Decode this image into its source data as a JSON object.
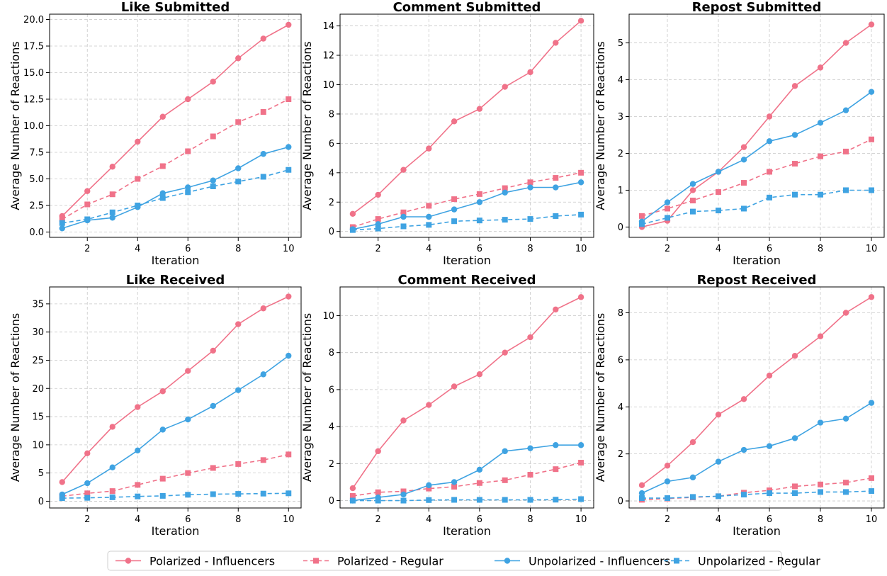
{
  "chart_data": [
    {
      "type": "line",
      "title": "Like Submitted",
      "xlabel": "Iteration",
      "ylabel": "Average Number of Reactions",
      "x": [
        1,
        2,
        3,
        4,
        5,
        6,
        7,
        8,
        9,
        10
      ],
      "xlim": [
        0.5,
        10.5
      ],
      "ylim": [
        -0.5,
        20.5
      ],
      "xticks": [
        "2",
        "4",
        "6",
        "8",
        "10"
      ],
      "yticks": [
        "0.0",
        "2.5",
        "5.0",
        "7.5",
        "10.0",
        "12.5",
        "15.0",
        "17.5",
        "20.0"
      ],
      "grid": true,
      "series": [
        {
          "name": "Polarized - Influencers",
          "values": [
            1.5,
            3.85,
            6.15,
            8.5,
            10.85,
            12.5,
            14.15,
            16.35,
            18.2,
            19.5
          ]
        },
        {
          "name": "Polarized - Regular",
          "values": [
            1.2,
            2.6,
            3.55,
            5.0,
            6.2,
            7.6,
            9.0,
            10.35,
            11.3,
            12.5
          ]
        },
        {
          "name": "Unpolarized - Influencers",
          "values": [
            0.35,
            1.1,
            1.35,
            2.35,
            3.65,
            4.2,
            4.85,
            6.0,
            7.35,
            8.0
          ]
        },
        {
          "name": "Unpolarized - Regular",
          "values": [
            0.85,
            1.2,
            1.85,
            2.5,
            3.2,
            3.75,
            4.3,
            4.75,
            5.2,
            5.85
          ]
        }
      ]
    },
    {
      "type": "line",
      "title": "Comment Submitted",
      "xlabel": "Iteration",
      "ylabel": "Average Number of Reactions",
      "x": [
        1,
        2,
        3,
        4,
        5,
        6,
        7,
        8,
        9,
        10
      ],
      "xlim": [
        0.5,
        10.5
      ],
      "ylim": [
        -0.4,
        14.8
      ],
      "xticks": [
        "2",
        "4",
        "6",
        "8",
        "10"
      ],
      "yticks": [
        "0",
        "2",
        "4",
        "6",
        "8",
        "10",
        "12",
        "14"
      ],
      "grid": true,
      "series": [
        {
          "name": "Polarized - Influencers",
          "values": [
            1.2,
            2.5,
            4.2,
            5.65,
            7.5,
            8.35,
            9.85,
            10.85,
            12.85,
            14.35
          ]
        },
        {
          "name": "Polarized - Regular",
          "values": [
            0.3,
            0.85,
            1.3,
            1.75,
            2.2,
            2.55,
            2.95,
            3.35,
            3.65,
            4.0
          ]
        },
        {
          "name": "Unpolarized - Influencers",
          "values": [
            0.15,
            0.5,
            1.0,
            1.0,
            1.5,
            2.0,
            2.65,
            3.0,
            3.0,
            3.35
          ]
        },
        {
          "name": "Unpolarized - Regular",
          "values": [
            0.1,
            0.2,
            0.35,
            0.45,
            0.7,
            0.75,
            0.8,
            0.85,
            1.05,
            1.15
          ]
        }
      ]
    },
    {
      "type": "line",
      "title": "Repost Submitted",
      "xlabel": "Iteration",
      "ylabel": "Average Number of Reactions",
      "x": [
        1,
        2,
        3,
        4,
        5,
        6,
        7,
        8,
        9,
        10
      ],
      "xlim": [
        0.5,
        10.5
      ],
      "ylim": [
        -0.28,
        5.78
      ],
      "xticks": [
        "2",
        "4",
        "6",
        "8",
        "10"
      ],
      "yticks": [
        "0",
        "1",
        "2",
        "3",
        "4",
        "5"
      ],
      "grid": true,
      "series": [
        {
          "name": "Polarized - Influencers",
          "values": [
            0.0,
            0.17,
            1.0,
            1.5,
            2.17,
            3.0,
            3.83,
            4.33,
            5.0,
            5.5
          ]
        },
        {
          "name": "Polarized - Regular",
          "values": [
            0.3,
            0.5,
            0.72,
            0.95,
            1.2,
            1.5,
            1.72,
            1.92,
            2.05,
            2.38
          ]
        },
        {
          "name": "Unpolarized - Influencers",
          "values": [
            0.15,
            0.67,
            1.17,
            1.5,
            1.83,
            2.33,
            2.5,
            2.83,
            3.17,
            3.67
          ]
        },
        {
          "name": "Unpolarized - Regular",
          "values": [
            0.08,
            0.25,
            0.42,
            0.45,
            0.5,
            0.8,
            0.88,
            0.88,
            1.0,
            1.0
          ]
        }
      ]
    },
    {
      "type": "line",
      "title": "Like Received",
      "xlabel": "Iteration",
      "ylabel": "Average Number of Reactions",
      "x": [
        1,
        2,
        3,
        4,
        5,
        6,
        7,
        8,
        9,
        10
      ],
      "xlim": [
        0.5,
        10.5
      ],
      "ylim": [
        -1.2,
        38.0
      ],
      "xticks": [
        "2",
        "4",
        "6",
        "8",
        "10"
      ],
      "yticks": [
        "0",
        "5",
        "10",
        "15",
        "20",
        "25",
        "30",
        "35"
      ],
      "grid": true,
      "series": [
        {
          "name": "Polarized - Influencers",
          "values": [
            3.4,
            8.5,
            13.2,
            16.7,
            19.5,
            23.1,
            26.7,
            31.4,
            34.2,
            36.3
          ]
        },
        {
          "name": "Polarized - Regular",
          "values": [
            0.9,
            1.4,
            1.8,
            2.9,
            4.0,
            5.0,
            5.9,
            6.6,
            7.3,
            8.3
          ]
        },
        {
          "name": "Unpolarized - Influencers",
          "values": [
            1.2,
            3.2,
            6.0,
            9.0,
            12.7,
            14.5,
            16.9,
            19.7,
            22.5,
            25.8
          ]
        },
        {
          "name": "Unpolarized - Regular",
          "values": [
            0.55,
            0.6,
            0.7,
            0.85,
            0.95,
            1.15,
            1.25,
            1.3,
            1.35,
            1.4
          ]
        }
      ]
    },
    {
      "type": "line",
      "title": "Comment Received",
      "xlabel": "Iteration",
      "ylabel": "Average Number of Reactions",
      "x": [
        1,
        2,
        3,
        4,
        5,
        6,
        7,
        8,
        9,
        10
      ],
      "xlim": [
        0.5,
        10.5
      ],
      "ylim": [
        -0.4,
        11.55
      ],
      "xticks": [
        "2",
        "4",
        "6",
        "8",
        "10"
      ],
      "yticks": [
        "0",
        "2",
        "4",
        "6",
        "8",
        "10"
      ],
      "grid": true,
      "series": [
        {
          "name": "Polarized - Influencers",
          "values": [
            0.67,
            2.67,
            4.33,
            5.17,
            6.17,
            6.83,
            8.0,
            8.83,
            10.33,
            11.0
          ]
        },
        {
          "name": "Polarized - Regular",
          "values": [
            0.25,
            0.45,
            0.5,
            0.65,
            0.75,
            0.95,
            1.1,
            1.4,
            1.7,
            2.05
          ]
        },
        {
          "name": "Unpolarized - Influencers",
          "values": [
            0.0,
            0.17,
            0.33,
            0.83,
            1.0,
            1.67,
            2.67,
            2.83,
            3.0,
            3.0
          ]
        },
        {
          "name": "Unpolarized - Regular",
          "values": [
            0.0,
            0.0,
            0.0,
            0.03,
            0.04,
            0.04,
            0.04,
            0.04,
            0.05,
            0.08
          ]
        }
      ]
    },
    {
      "type": "line",
      "title": "Repost Received",
      "xlabel": "Iteration",
      "ylabel": "Average Number of Reactions",
      "x": [
        1,
        2,
        3,
        4,
        5,
        6,
        7,
        8,
        9,
        10
      ],
      "xlim": [
        0.5,
        10.5
      ],
      "ylim": [
        -0.3,
        9.1
      ],
      "xticks": [
        "2",
        "4",
        "6",
        "8",
        "10"
      ],
      "yticks": [
        "0",
        "2",
        "4",
        "6",
        "8"
      ],
      "grid": true,
      "series": [
        {
          "name": "Polarized - Influencers",
          "values": [
            0.67,
            1.5,
            2.5,
            3.67,
            4.33,
            5.33,
            6.17,
            7.0,
            8.0,
            8.67
          ]
        },
        {
          "name": "Polarized - Regular",
          "values": [
            0.05,
            0.1,
            0.15,
            0.2,
            0.35,
            0.45,
            0.62,
            0.7,
            0.78,
            0.97
          ]
        },
        {
          "name": "Unpolarized - Influencers",
          "values": [
            0.33,
            0.83,
            1.0,
            1.67,
            2.17,
            2.33,
            2.67,
            3.33,
            3.5,
            4.17
          ]
        },
        {
          "name": "Unpolarized - Regular",
          "values": [
            0.12,
            0.12,
            0.17,
            0.2,
            0.27,
            0.33,
            0.33,
            0.38,
            0.38,
            0.42
          ]
        }
      ]
    }
  ],
  "legend": {
    "placement": "bottom-center",
    "entries": [
      {
        "name": "Polarized - Influencers",
        "color": "#f07289",
        "linestyle": "solid",
        "marker": "circle"
      },
      {
        "name": "Polarized - Regular",
        "color": "#f07289",
        "linestyle": "dashed",
        "marker": "square"
      },
      {
        "name": "Unpolarized - Influencers",
        "color": "#3fa3e2",
        "linestyle": "solid",
        "marker": "circle"
      },
      {
        "name": "Unpolarized - Regular",
        "color": "#3fa3e2",
        "linestyle": "dashed",
        "marker": "square"
      }
    ]
  }
}
